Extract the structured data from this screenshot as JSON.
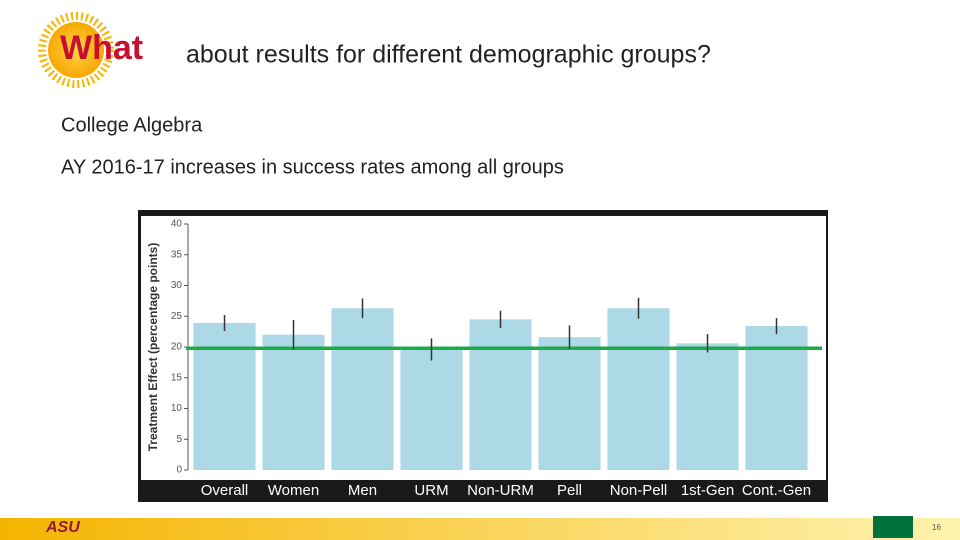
{
  "header": {
    "keyword": "What",
    "title": "about results for different demographic groups?"
  },
  "subtitle": "College Algebra",
  "headline": "AY 2016-17 increases in success rates among all groups",
  "footer": {
    "logo": "ASU",
    "page": "16"
  },
  "chart_data": {
    "type": "bar",
    "y_label": "Treatment Effect (percentage points)",
    "categories": [
      "Overall",
      "Women",
      "Men",
      "URM",
      "Non-URM",
      "Pell",
      "Non-Pell",
      "1st-Gen",
      "Cont.-Gen"
    ],
    "values": [
      23.9,
      22.0,
      26.3,
      19.6,
      24.5,
      21.6,
      26.3,
      20.6,
      23.4
    ],
    "errors": [
      1.3,
      2.4,
      1.6,
      1.8,
      1.4,
      1.9,
      1.7,
      1.5,
      1.3
    ],
    "color": "#add8e6",
    "reference_line": 19.8,
    "reference_color": "#1faa4a",
    "ylim": [
      0,
      40
    ],
    "yticks": [
      0,
      5,
      10,
      15,
      20,
      25,
      30,
      35,
      40
    ]
  }
}
